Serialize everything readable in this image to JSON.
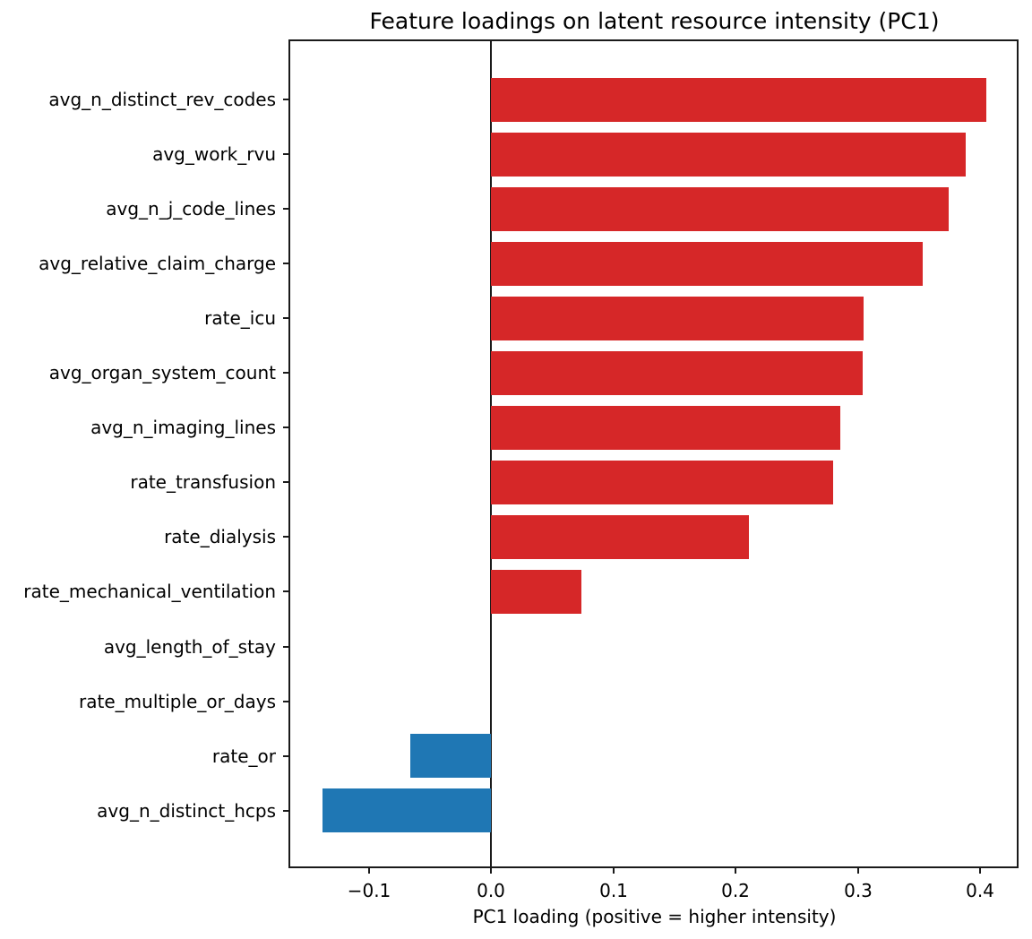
{
  "chart_data": {
    "type": "bar",
    "orientation": "horizontal",
    "title": "Feature loadings on latent resource intensity (PC1)",
    "xlabel": "PC1 loading (positive = higher intensity)",
    "ylabel": "",
    "categories": [
      "avg_n_distinct_rev_codes",
      "avg_work_rvu",
      "avg_n_j_code_lines",
      "avg_relative_claim_charge",
      "rate_icu",
      "avg_organ_system_count",
      "avg_n_imaging_lines",
      "rate_transfusion",
      "rate_dialysis",
      "rate_mechanical_ventilation",
      "avg_length_of_stay",
      "rate_multiple_or_days",
      "rate_or",
      "avg_n_distinct_hcps"
    ],
    "values": [
      0.405,
      0.388,
      0.374,
      0.353,
      0.305,
      0.304,
      0.286,
      0.28,
      0.211,
      0.074,
      0.0,
      0.0,
      -0.066,
      -0.138
    ],
    "xlim": [
      -0.165,
      0.432
    ],
    "xticks": [
      -0.1,
      0.0,
      0.1,
      0.2,
      0.3,
      0.4
    ],
    "xtick_labels": [
      "−0.1",
      "0.0",
      "0.1",
      "0.2",
      "0.3",
      "0.4"
    ],
    "bar_color_positive": "#d62728",
    "bar_color_negative": "#1f77b4",
    "axis_color": "#1a1a1a",
    "zero_line": true,
    "grid": false,
    "legend": false
  }
}
